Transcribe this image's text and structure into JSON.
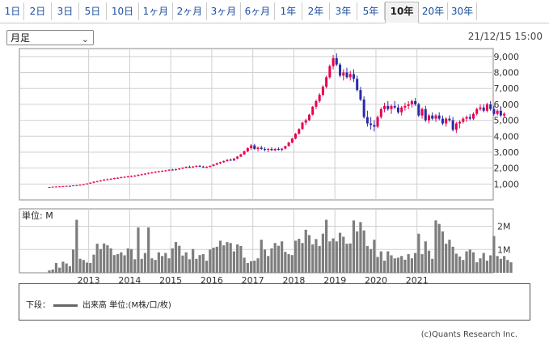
{
  "tabs": [
    "1日",
    "2日",
    "3日",
    "5日",
    "10日",
    "1ヶ月",
    "2ヶ月",
    "3ヶ月",
    "6ヶ月",
    "1年",
    "2年",
    "3年",
    "5年",
    "10年",
    "20年",
    "30年"
  ],
  "active_tab": "10年",
  "period_select": "月足",
  "timestamp": "21/12/15 15:00",
  "volume_panel_label": "単位: M",
  "legend": {
    "prefix": "下段：",
    "series": "出来高 単位:(M株/口/枚)"
  },
  "copyright": "(c)Quants Research Inc.",
  "colors": {
    "up": "#e8004f",
    "down": "#2a2aa8",
    "volume": "#7d7d7d",
    "grid": "#d0d0d0"
  },
  "chart_data": {
    "type": "candlestick",
    "x_tick_labels": [
      "2013",
      "2014",
      "2015",
      "2016",
      "2017",
      "2018",
      "2019",
      "2020",
      "2021"
    ],
    "y_price": {
      "ticks": [
        "1,000",
        "2,000",
        "3,000",
        "4,000",
        "5,000",
        "6,000",
        "7,000",
        "8,000",
        "9,000"
      ],
      "ylim": [
        0,
        9500
      ]
    },
    "y_volume": {
      "ticks": [
        "1M",
        "2M"
      ],
      "ylim": [
        0,
        2.75
      ]
    },
    "start_month": "2012-01",
    "ohlc": [
      [
        800,
        820,
        790,
        810
      ],
      [
        810,
        840,
        800,
        830
      ],
      [
        830,
        850,
        810,
        840
      ],
      [
        840,
        860,
        820,
        850
      ],
      [
        850,
        880,
        840,
        870
      ],
      [
        870,
        900,
        860,
        880
      ],
      [
        880,
        900,
        850,
        870
      ],
      [
        870,
        920,
        860,
        910
      ],
      [
        910,
        940,
        890,
        920
      ],
      [
        920,
        960,
        900,
        950
      ],
      [
        950,
        1000,
        930,
        980
      ],
      [
        980,
        1050,
        960,
        1030
      ],
      [
        1030,
        1100,
        1010,
        1080
      ],
      [
        1080,
        1160,
        1050,
        1140
      ],
      [
        1140,
        1200,
        1100,
        1180
      ],
      [
        1180,
        1250,
        1140,
        1220
      ],
      [
        1220,
        1300,
        1190,
        1280
      ],
      [
        1280,
        1340,
        1230,
        1300
      ],
      [
        1300,
        1360,
        1250,
        1330
      ],
      [
        1330,
        1400,
        1290,
        1370
      ],
      [
        1370,
        1420,
        1320,
        1390
      ],
      [
        1390,
        1460,
        1350,
        1430
      ],
      [
        1430,
        1480,
        1380,
        1450
      ],
      [
        1450,
        1520,
        1400,
        1480
      ],
      [
        1480,
        1540,
        1430,
        1500
      ],
      [
        1500,
        1560,
        1450,
        1520
      ],
      [
        1520,
        1600,
        1480,
        1580
      ],
      [
        1580,
        1640,
        1530,
        1610
      ],
      [
        1610,
        1680,
        1570,
        1650
      ],
      [
        1650,
        1720,
        1610,
        1700
      ],
      [
        1700,
        1760,
        1650,
        1720
      ],
      [
        1720,
        1790,
        1680,
        1770
      ],
      [
        1770,
        1830,
        1720,
        1800
      ],
      [
        1800,
        1860,
        1750,
        1830
      ],
      [
        1830,
        1880,
        1780,
        1850
      ],
      [
        1850,
        1920,
        1810,
        1900
      ],
      [
        1900,
        1950,
        1850,
        1880
      ],
      [
        1880,
        1960,
        1840,
        1930
      ],
      [
        1930,
        2000,
        1880,
        1970
      ],
      [
        1970,
        2050,
        1930,
        2020
      ],
      [
        2020,
        2100,
        1980,
        2080
      ],
      [
        2080,
        2150,
        2010,
        2060
      ],
      [
        2060,
        2130,
        2000,
        2100
      ],
      [
        2100,
        2180,
        2050,
        2140
      ],
      [
        2140,
        2200,
        2060,
        2090
      ],
      [
        2090,
        2150,
        2010,
        2040
      ],
      [
        2040,
        2110,
        1980,
        2080
      ],
      [
        2080,
        2160,
        2040,
        2140
      ],
      [
        2140,
        2250,
        2100,
        2220
      ],
      [
        2220,
        2340,
        2180,
        2300
      ],
      [
        2300,
        2400,
        2250,
        2370
      ],
      [
        2370,
        2480,
        2320,
        2440
      ],
      [
        2440,
        2550,
        2400,
        2520
      ],
      [
        2520,
        2600,
        2450,
        2480
      ],
      [
        2480,
        2620,
        2440,
        2600
      ],
      [
        2600,
        2750,
        2560,
        2720
      ],
      [
        2720,
        2900,
        2680,
        2860
      ],
      [
        2860,
        3100,
        2820,
        3050
      ],
      [
        3050,
        3300,
        3000,
        3250
      ],
      [
        3250,
        3500,
        3150,
        3420
      ],
      [
        3420,
        3520,
        3150,
        3200
      ],
      [
        3200,
        3350,
        3050,
        3280
      ],
      [
        3280,
        3400,
        3150,
        3200
      ],
      [
        3200,
        3300,
        3050,
        3150
      ],
      [
        3150,
        3250,
        3000,
        3200
      ],
      [
        3200,
        3300,
        3080,
        3120
      ],
      [
        3120,
        3250,
        3050,
        3200
      ],
      [
        3200,
        3300,
        3100,
        3150
      ],
      [
        3150,
        3250,
        3050,
        3220
      ],
      [
        3220,
        3400,
        3180,
        3380
      ],
      [
        3380,
        3650,
        3350,
        3600
      ],
      [
        3600,
        3900,
        3550,
        3850
      ],
      [
        3850,
        4200,
        3800,
        4150
      ],
      [
        4150,
        4500,
        4100,
        4450
      ],
      [
        4450,
        4900,
        4400,
        4850
      ],
      [
        4850,
        5100,
        4700,
        5000
      ],
      [
        5000,
        5400,
        4950,
        5350
      ],
      [
        5350,
        5900,
        5300,
        5850
      ],
      [
        5850,
        6300,
        5700,
        6200
      ],
      [
        6200,
        6700,
        6100,
        6600
      ],
      [
        6600,
        7200,
        6500,
        7100
      ],
      [
        7100,
        7800,
        7000,
        7700
      ],
      [
        7700,
        8500,
        7600,
        8400
      ],
      [
        8400,
        9100,
        8200,
        8900
      ],
      [
        8900,
        9200,
        8400,
        8500
      ],
      [
        8500,
        8600,
        7700,
        7800
      ],
      [
        7800,
        8200,
        7500,
        8000
      ],
      [
        8000,
        8300,
        7600,
        7700
      ],
      [
        7700,
        8100,
        7500,
        7900
      ],
      [
        7900,
        8200,
        7400,
        7600
      ],
      [
        7600,
        7800,
        6800,
        6900
      ],
      [
        6900,
        7100,
        6200,
        6300
      ],
      [
        6300,
        6500,
        5100,
        5200
      ],
      [
        5200,
        5600,
        4600,
        4800
      ],
      [
        4800,
        5200,
        4400,
        4700
      ],
      [
        4700,
        5000,
        4300,
        4600
      ],
      [
        4600,
        5300,
        4500,
        5200
      ],
      [
        5200,
        5800,
        5100,
        5700
      ],
      [
        5700,
        6100,
        5500,
        5900
      ],
      [
        5900,
        6200,
        5600,
        5700
      ],
      [
        5700,
        6000,
        5400,
        5900
      ],
      [
        5900,
        6200,
        5700,
        5800
      ],
      [
        5800,
        6000,
        5400,
        5500
      ],
      [
        5500,
        5900,
        5300,
        5800
      ],
      [
        5800,
        6100,
        5600,
        5900
      ],
      [
        5900,
        6200,
        5700,
        6000
      ],
      [
        6000,
        6300,
        5800,
        6200
      ],
      [
        6200,
        6400,
        5900,
        6000
      ],
      [
        6000,
        6100,
        5200,
        5300
      ],
      [
        5300,
        5800,
        5100,
        5700
      ],
      [
        5700,
        5900,
        4900,
        5000
      ],
      [
        5000,
        5400,
        4800,
        5300
      ],
      [
        5300,
        5500,
        5000,
        5100
      ],
      [
        5100,
        5400,
        4900,
        5300
      ],
      [
        5300,
        5500,
        5000,
        5100
      ],
      [
        5100,
        5300,
        4700,
        4800
      ],
      [
        4800,
        5200,
        4600,
        5100
      ],
      [
        5100,
        5300,
        4900,
        5000
      ],
      [
        5000,
        5200,
        4300,
        4400
      ],
      [
        4400,
        4900,
        4200,
        4800
      ],
      [
        4800,
        5000,
        4500,
        4900
      ],
      [
        4900,
        5200,
        4800,
        5100
      ],
      [
        5100,
        5300,
        4900,
        5200
      ],
      [
        5200,
        5400,
        5000,
        5100
      ],
      [
        5100,
        5500,
        5000,
        5400
      ],
      [
        5400,
        5800,
        5300,
        5700
      ],
      [
        5700,
        6000,
        5600,
        5800
      ],
      [
        5800,
        6000,
        5500,
        5600
      ],
      [
        5600,
        6100,
        5500,
        6000
      ],
      [
        6000,
        6200,
        5600,
        5700
      ],
      [
        5700,
        5900,
        5300,
        5400
      ],
      [
        5400,
        5700,
        5300,
        5600
      ],
      [
        5600,
        5800,
        5200,
        5300
      ],
      [
        5300,
        5500,
        5200,
        5400
      ]
    ],
    "volume": [
      0.1,
      0.14,
      0.42,
      0.22,
      0.48,
      0.4,
      0.28,
      1.0,
      2.28,
      0.6,
      0.55,
      0.44,
      0.42,
      0.78,
      1.25,
      1.02,
      1.26,
      1.18,
      1.05,
      0.76,
      0.8,
      0.88,
      0.75,
      1.05,
      1.02,
      0.58,
      1.95,
      0.6,
      0.85,
      1.95,
      0.62,
      0.55,
      0.88,
      0.72,
      0.85,
      0.62,
      1.05,
      1.32,
      1.16,
      0.74,
      0.88,
      0.58,
      1.02,
      0.6,
      0.76,
      0.8,
      0.52,
      1.0,
      1.08,
      1.12,
      1.38,
      1.18,
      1.32,
      1.28,
      0.92,
      1.22,
      1.15,
      0.65,
      0.42,
      0.5,
      0.52,
      0.62,
      1.42,
      1.0,
      0.72,
      1.05,
      1.28,
      1.16,
      1.35,
      0.9,
      0.8,
      0.76,
      1.38,
      1.46,
      1.28,
      1.85,
      1.62,
      1.22,
      1.45,
      1.15,
      1.68,
      2.28,
      1.35,
      1.48,
      1.35,
      1.72,
      1.55,
      1.25,
      1.26,
      2.25,
      1.78,
      2.18,
      1.82,
      1.15,
      1.02,
      1.42,
      0.68,
      0.92,
      0.52,
      0.92,
      0.75,
      0.62,
      0.65,
      0.72,
      0.56,
      0.8,
      0.62,
      0.85,
      1.68,
      0.8,
      1.35,
      0.95,
      0.6,
      2.25,
      2.1,
      1.78,
      1.25,
      1.42,
      1.12,
      0.82,
      0.7,
      0.55,
      0.92,
      1.0,
      0.88,
      0.45,
      0.62,
      0.85,
      0.52,
      0.75,
      1.58,
      0.72,
      0.6,
      0.72,
      0.55,
      0.45
    ]
  }
}
